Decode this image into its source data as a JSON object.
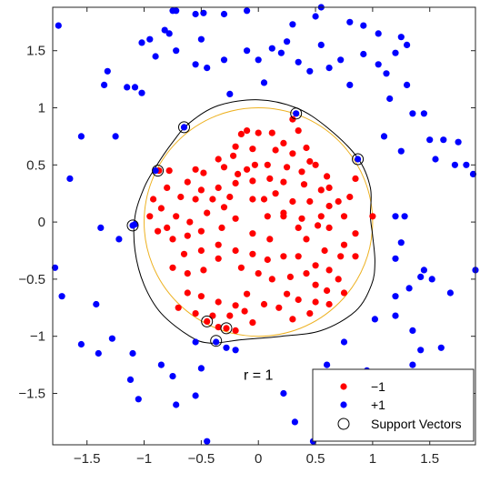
{
  "chart_data": {
    "type": "scatter",
    "title": "",
    "xlabel": "",
    "ylabel": "",
    "xlim": [
      -1.8,
      1.9
    ],
    "ylim": [
      -1.95,
      1.88
    ],
    "xticks": [
      -1.5,
      -1,
      -0.5,
      0,
      0.5,
      1,
      1.5
    ],
    "xtick_labels": [
      "−1.5",
      "−1",
      "−0.5",
      "0",
      "0.5",
      "1",
      "1.5"
    ],
    "yticks": [
      -1.5,
      -1,
      -0.5,
      0,
      0.5,
      1,
      1.5
    ],
    "ytick_labels": [
      "−1.5",
      "−1",
      "−0.5",
      "0",
      "0.5",
      "1",
      "1.5"
    ],
    "grid": false,
    "legend_position": "bottom-right",
    "annotation": "r = 1",
    "annotation_pos": [
      0.0,
      -1.38
    ],
    "colors": {
      "neg": "#ff0000",
      "pos": "#0000ff",
      "true_circle": "#edb120",
      "boundary": "#000000",
      "support": "#000000"
    },
    "series": [
      {
        "name": "−1",
        "color": "#ff0000",
        "points": [
          [
            -0.15,
            0.77
          ],
          [
            -0.1,
            0.8
          ],
          [
            0.0,
            0.78
          ],
          [
            0.12,
            0.78
          ],
          [
            0.22,
            0.69
          ],
          [
            0.35,
            0.8
          ],
          [
            0.42,
            0.65
          ],
          [
            0.45,
            0.53
          ],
          [
            0.3,
            0.6
          ],
          [
            0.15,
            0.63
          ],
          [
            -0.05,
            0.64
          ],
          [
            -0.2,
            0.66
          ],
          [
            -0.22,
            0.58
          ],
          [
            -0.35,
            0.55
          ],
          [
            -0.48,
            0.43
          ],
          [
            -0.55,
            0.46
          ],
          [
            -0.3,
            0.48
          ],
          [
            -0.18,
            0.42
          ],
          [
            -0.1,
            0.46
          ],
          [
            -0.03,
            0.5
          ],
          [
            0.08,
            0.5
          ],
          [
            0.25,
            0.48
          ],
          [
            0.38,
            0.44
          ],
          [
            0.5,
            0.5
          ],
          [
            0.6,
            0.4
          ],
          [
            0.62,
            0.3
          ],
          [
            0.55,
            0.28
          ],
          [
            0.4,
            0.33
          ],
          [
            0.22,
            0.35
          ],
          [
            0.1,
            0.38
          ],
          [
            -0.05,
            0.36
          ],
          [
            -0.2,
            0.34
          ],
          [
            -0.35,
            0.3
          ],
          [
            -0.5,
            0.28
          ],
          [
            -0.62,
            0.35
          ],
          [
            -0.68,
            0.22
          ],
          [
            -0.8,
            0.3
          ],
          [
            -0.85,
            0.12
          ],
          [
            -0.72,
            0.05
          ],
          [
            -0.55,
            0.2
          ],
          [
            -0.4,
            0.2
          ],
          [
            -0.25,
            0.22
          ],
          [
            -0.3,
            0.13
          ],
          [
            -0.45,
            0.08
          ],
          [
            -0.6,
            0.0
          ],
          [
            -0.8,
            -0.05
          ],
          [
            -0.75,
            -0.15
          ],
          [
            -0.62,
            -0.12
          ],
          [
            -0.5,
            -0.08
          ],
          [
            -0.32,
            -0.05
          ],
          [
            -0.2,
            0.03
          ],
          [
            -0.05,
            0.2
          ],
          [
            0.05,
            0.2
          ],
          [
            0.15,
            0.25
          ],
          [
            0.3,
            0.18
          ],
          [
            0.45,
            0.18
          ],
          [
            0.62,
            0.14
          ],
          [
            0.75,
            0.05
          ],
          [
            0.7,
            0.18
          ],
          [
            0.55,
            0.05
          ],
          [
            0.38,
            0.03
          ],
          [
            0.22,
            0.05
          ],
          [
            0.08,
            0.05
          ],
          [
            -0.05,
            -0.1
          ],
          [
            0.1,
            -0.15
          ],
          [
            0.22,
            0.08
          ],
          [
            0.35,
            -0.05
          ],
          [
            0.52,
            -0.03
          ],
          [
            0.62,
            -0.05
          ],
          [
            0.75,
            -0.2
          ],
          [
            0.72,
            -0.3
          ],
          [
            0.58,
            -0.25
          ],
          [
            0.42,
            -0.15
          ],
          [
            0.35,
            -0.3
          ],
          [
            0.5,
            -0.38
          ],
          [
            0.62,
            -0.42
          ],
          [
            0.7,
            -0.5
          ],
          [
            0.75,
            -0.62
          ],
          [
            0.6,
            -0.6
          ],
          [
            0.5,
            -0.55
          ],
          [
            0.42,
            -0.45
          ],
          [
            0.28,
            -0.48
          ],
          [
            0.22,
            -0.3
          ],
          [
            0.08,
            -0.33
          ],
          [
            -0.05,
            -0.28
          ],
          [
            -0.2,
            -0.25
          ],
          [
            -0.35,
            -0.2
          ],
          [
            -0.5,
            -0.25
          ],
          [
            -0.65,
            -0.28
          ],
          [
            -0.75,
            -0.4
          ],
          [
            -0.62,
            -0.45
          ],
          [
            -0.48,
            -0.42
          ],
          [
            -0.35,
            -0.32
          ],
          [
            -0.15,
            -0.4
          ],
          [
            0.0,
            -0.45
          ],
          [
            0.12,
            -0.5
          ],
          [
            0.25,
            -0.63
          ],
          [
            0.35,
            -0.68
          ],
          [
            0.5,
            -0.7
          ],
          [
            0.62,
            -0.72
          ],
          [
            0.45,
            -0.8
          ],
          [
            0.3,
            -0.85
          ],
          [
            0.18,
            -0.75
          ],
          [
            0.05,
            -0.72
          ],
          [
            -0.1,
            -0.63
          ],
          [
            -0.2,
            -0.73
          ],
          [
            -0.35,
            -0.7
          ],
          [
            -0.5,
            -0.65
          ],
          [
            -0.62,
            -0.62
          ],
          [
            -0.7,
            -0.75
          ],
          [
            -0.55,
            -0.8
          ],
          [
            -0.4,
            -0.82
          ],
          [
            -0.25,
            -0.82
          ],
          [
            -0.12,
            -0.78
          ],
          [
            -0.05,
            -0.88
          ],
          [
            -0.35,
            -0.92
          ],
          [
            -0.45,
            -0.87
          ],
          [
            -0.28,
            -0.93
          ],
          [
            -0.88,
            -0.08
          ],
          [
            -0.92,
            0.2
          ],
          [
            -0.95,
            0.05
          ],
          [
            0.85,
            0.38
          ],
          [
            1.0,
            0.05
          ],
          [
            0.85,
            -0.1
          ],
          [
            0.85,
            -0.3
          ],
          [
            0.8,
            0.22
          ],
          [
            -0.78,
            0.45
          ],
          [
            -0.87,
            0.45
          ],
          [
            -0.2,
            -0.95
          ],
          [
            0.3,
            0.9
          ]
        ]
      },
      {
        "name": "+1",
        "color": "#0000ff",
        "points": [
          [
            -0.75,
            1.85
          ],
          [
            -0.72,
            1.85
          ],
          [
            -0.55,
            1.82
          ],
          [
            -0.48,
            1.83
          ],
          [
            -0.3,
            1.82
          ],
          [
            -0.1,
            1.85
          ],
          [
            0.3,
            1.73
          ],
          [
            0.5,
            1.8
          ],
          [
            0.55,
            1.88
          ],
          [
            0.92,
            1.72
          ],
          [
            1.2,
            1.48
          ],
          [
            -1.02,
            1.57
          ],
          [
            -0.95,
            1.6
          ],
          [
            -0.82,
            1.68
          ],
          [
            -0.78,
            1.65
          ],
          [
            -0.9,
            1.45
          ],
          [
            -0.72,
            1.5
          ],
          [
            -0.55,
            1.38
          ],
          [
            -0.5,
            1.6
          ],
          [
            -0.45,
            1.35
          ],
          [
            -0.3,
            1.42
          ],
          [
            -0.25,
            1.12
          ],
          [
            -0.1,
            1.5
          ],
          [
            0.0,
            1.42
          ],
          [
            0.05,
            1.22
          ],
          [
            0.12,
            1.52
          ],
          [
            0.2,
            1.48
          ],
          [
            0.25,
            1.58
          ],
          [
            0.35,
            1.4
          ],
          [
            0.45,
            1.32
          ],
          [
            0.55,
            1.55
          ],
          [
            0.62,
            1.35
          ],
          [
            0.72,
            1.42
          ],
          [
            0.8,
            1.2
          ],
          [
            0.92,
            1.47
          ],
          [
            1.05,
            1.38
          ],
          [
            1.12,
            1.3
          ],
          [
            1.15,
            1.08
          ],
          [
            1.3,
            1.2
          ],
          [
            1.35,
            0.95
          ],
          [
            1.45,
            0.95
          ],
          [
            1.1,
            0.75
          ],
          [
            1.25,
            0.62
          ],
          [
            1.5,
            0.72
          ],
          [
            1.62,
            0.72
          ],
          [
            1.55,
            0.55
          ],
          [
            1.75,
            0.7
          ],
          [
            1.82,
            0.5
          ],
          [
            1.88,
            0.42
          ],
          [
            -1.32,
            1.32
          ],
          [
            -1.35,
            1.2
          ],
          [
            -1.15,
            1.18
          ],
          [
            -1.08,
            1.18
          ],
          [
            -1.02,
            1.13
          ],
          [
            -1.25,
            0.75
          ],
          [
            -1.55,
            0.75
          ],
          [
            -1.65,
            0.38
          ],
          [
            -1.72,
            -0.65
          ],
          [
            -1.78,
            -0.4
          ],
          [
            -1.55,
            -1.07
          ],
          [
            -1.42,
            -0.72
          ],
          [
            -1.4,
            -1.15
          ],
          [
            -1.38,
            -0.05
          ],
          [
            -1.22,
            -0.15
          ],
          [
            -1.1,
            -1.15
          ],
          [
            -1.12,
            -1.38
          ],
          [
            -1.08,
            -0.02
          ],
          [
            -0.85,
            -1.25
          ],
          [
            -0.72,
            -1.6
          ],
          [
            -0.55,
            -1.05
          ],
          [
            -0.5,
            -1.28
          ],
          [
            -0.55,
            -1.52
          ],
          [
            -0.28,
            -1.1
          ],
          [
            -0.2,
            -1.12
          ],
          [
            0.32,
            -1.75
          ],
          [
            0.6,
            -1.25
          ],
          [
            0.75,
            -1.05
          ],
          [
            0.8,
            -1.45
          ],
          [
            0.95,
            -1.3
          ],
          [
            1.0,
            -1.35
          ],
          [
            1.02,
            -0.85
          ],
          [
            1.2,
            -0.65
          ],
          [
            1.2,
            -0.32
          ],
          [
            1.2,
            -0.82
          ],
          [
            1.32,
            -0.58
          ],
          [
            1.35,
            -0.95
          ],
          [
            1.35,
            -1.25
          ],
          [
            1.42,
            -1.12
          ],
          [
            1.45,
            -0.42
          ],
          [
            1.52,
            -0.5
          ],
          [
            1.52,
            -1.4
          ],
          [
            1.45,
            -1.6
          ],
          [
            1.42,
            -0.48
          ],
          [
            1.6,
            -1.1
          ],
          [
            1.68,
            -0.62
          ],
          [
            1.72,
            0.5
          ],
          [
            1.9,
            -0.42
          ],
          [
            1.28,
            0.05
          ],
          [
            1.25,
            -0.18
          ],
          [
            1.2,
            0.05
          ],
          [
            -0.75,
            -1.35
          ],
          [
            0.22,
            -1.5
          ],
          [
            0.48,
            -1.92
          ],
          [
            -0.45,
            -1.92
          ],
          [
            -1.75,
            1.72
          ],
          [
            1.25,
            1.62
          ],
          [
            1.05,
            1.65
          ],
          [
            1.3,
            1.55
          ],
          [
            0.8,
            1.75
          ],
          [
            -1.28,
            -1.02
          ],
          [
            -1.05,
            -1.55
          ],
          [
            -0.65,
            0.83
          ],
          [
            0.33,
            0.95
          ],
          [
            0.87,
            0.55
          ],
          [
            -0.9,
            0.45
          ],
          [
            -1.1,
            -0.03
          ],
          [
            -0.37,
            -1.05
          ]
        ]
      }
    ],
    "support_vectors": [
      [
        -0.65,
        0.83
      ],
      [
        0.33,
        0.95
      ],
      [
        0.87,
        0.55
      ],
      [
        -0.88,
        0.45
      ],
      [
        -1.1,
        -0.03
      ],
      [
        -0.45,
        -0.87
      ],
      [
        -0.28,
        -0.93
      ],
      [
        -0.37,
        -1.04
      ]
    ],
    "true_boundary": {
      "center": [
        0.0,
        0.0
      ],
      "radius": 1.0
    },
    "decision_boundary": [
      [
        0.98,
        0.05
      ],
      [
        1.0,
        -0.12
      ],
      [
        1.02,
        -0.35
      ],
      [
        0.99,
        -0.55
      ],
      [
        0.85,
        -0.78
      ],
      [
        0.55,
        -0.95
      ],
      [
        0.2,
        -1.0
      ],
      [
        -0.15,
        -1.03
      ],
      [
        -0.42,
        -1.06
      ],
      [
        -0.6,
        -1.0
      ],
      [
        -0.85,
        -0.8
      ],
      [
        -1.0,
        -0.55
      ],
      [
        -1.08,
        -0.25
      ],
      [
        -1.08,
        0.05
      ],
      [
        -1.0,
        0.3
      ],
      [
        -0.9,
        0.48
      ],
      [
        -0.75,
        0.7
      ],
      [
        -0.6,
        0.87
      ],
      [
        -0.35,
        1.02
      ],
      [
        0.0,
        1.07
      ],
      [
        0.33,
        1.0
      ],
      [
        0.6,
        0.83
      ],
      [
        0.87,
        0.56
      ],
      [
        0.98,
        0.3
      ]
    ],
    "legend": {
      "entries": [
        {
          "label": "−1",
          "symbol": "neg-dot"
        },
        {
          "label": "+1",
          "symbol": "pos-dot"
        },
        {
          "label": "Support Vectors",
          "symbol": "ring"
        }
      ]
    }
  }
}
